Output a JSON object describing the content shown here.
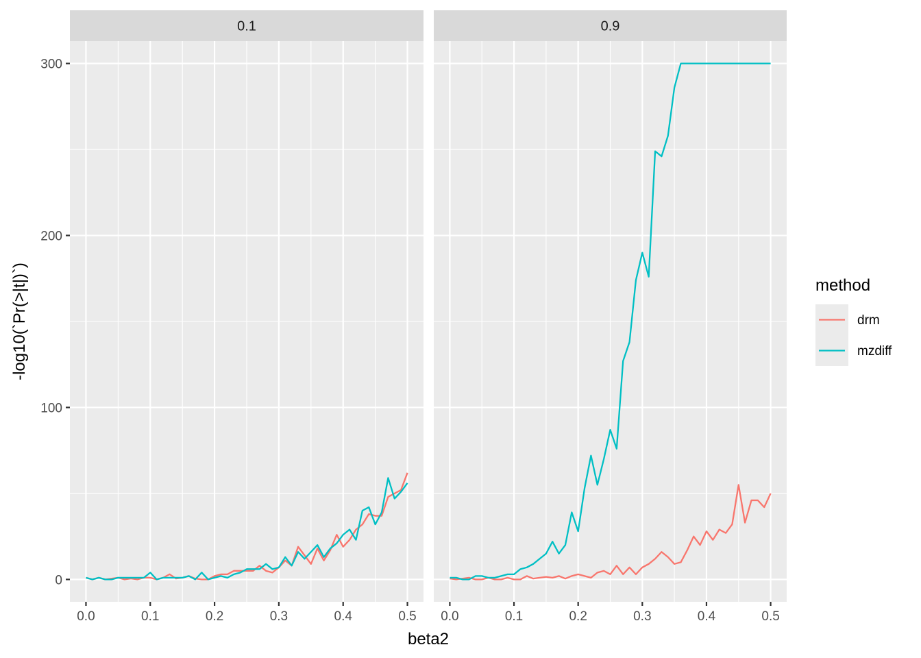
{
  "chart_data": {
    "type": "line",
    "xlabel": "beta2",
    "ylabel": "-log10(`Pr(>|t|)`)",
    "x_ticks": [
      "0.0",
      "0.1",
      "0.2",
      "0.3",
      "0.4",
      "0.5"
    ],
    "y_ticks": [
      "0",
      "100",
      "200",
      "300"
    ],
    "xlim": [
      -0.025,
      0.525
    ],
    "ylim": [
      -13,
      313
    ],
    "grid": true,
    "legend": {
      "title": "method",
      "position": "right",
      "entries": [
        {
          "name": "drm",
          "color": "#F8766D"
        },
        {
          "name": "mzdiff",
          "color": "#00BFC4"
        }
      ]
    },
    "x": [
      0.0,
      0.01,
      0.02,
      0.03,
      0.04,
      0.05,
      0.06,
      0.07,
      0.08,
      0.09,
      0.1,
      0.11,
      0.12,
      0.13,
      0.14,
      0.15,
      0.16,
      0.17,
      0.18,
      0.19,
      0.2,
      0.21,
      0.22,
      0.23,
      0.24,
      0.25,
      0.26,
      0.27,
      0.28,
      0.29,
      0.3,
      0.31,
      0.32,
      0.33,
      0.34,
      0.35,
      0.36,
      0.37,
      0.38,
      0.39,
      0.4,
      0.41,
      0.42,
      0.43,
      0.44,
      0.45,
      0.46,
      0.47,
      0.48,
      0.49,
      0.5
    ],
    "panels": [
      {
        "label": "0.1",
        "series": [
          {
            "name": "drm",
            "values": [
              1,
              0,
              1,
              0,
              0.5,
              1,
              0,
              0.5,
              0,
              1,
              1,
              0,
              1,
              3,
              0.5,
              1,
              2,
              0.5,
              0,
              0,
              2,
              3,
              3,
              5,
              5,
              5,
              5,
              8,
              5,
              4,
              7,
              11,
              8,
              19,
              14,
              9,
              18,
              11,
              17,
              26,
              19,
              23,
              29,
              32,
              38,
              37,
              37,
              48,
              50,
              52,
              62
            ]
          },
          {
            "name": "mzdiff",
            "values": [
              1,
              0,
              1,
              0,
              0,
              1,
              1,
              1,
              1,
              1,
              4,
              0,
              1,
              1,
              1,
              1,
              2,
              0,
              4,
              0,
              1,
              2,
              1,
              3,
              4,
              6,
              6,
              6,
              9,
              6,
              7,
              13,
              8,
              16,
              12,
              16,
              20,
              13,
              18,
              21,
              26,
              29,
              23,
              40,
              42,
              32,
              39,
              59,
              47,
              51,
              56
            ]
          }
        ]
      },
      {
        "label": "0.9",
        "series": [
          {
            "name": "drm",
            "values": [
              0.5,
              0,
              0.5,
              1,
              0,
              0,
              1,
              0,
              0,
              1,
              0,
              0,
              2,
              0.5,
              1,
              1.5,
              1,
              2,
              0.5,
              2,
              3,
              2,
              1,
              4,
              5,
              3,
              8,
              3,
              7,
              3,
              7,
              9,
              12,
              16,
              13,
              9,
              10,
              17,
              25,
              20,
              28,
              23,
              29,
              27,
              32,
              55,
              33,
              46,
              46,
              42,
              50
            ]
          },
          {
            "name": "mzdiff",
            "values": [
              1,
              1,
              0,
              0,
              2,
              2,
              1,
              1,
              2,
              3,
              3,
              6,
              7,
              9,
              12,
              15,
              22,
              15,
              20,
              39,
              28,
              53,
              72,
              55,
              70,
              87,
              76,
              127,
              138,
              174,
              190,
              176,
              249,
              246,
              258,
              286,
              300,
              300,
              300,
              300,
              300,
              300,
              300,
              300,
              300,
              300,
              300,
              300,
              300,
              300,
              300
            ]
          }
        ]
      }
    ]
  }
}
